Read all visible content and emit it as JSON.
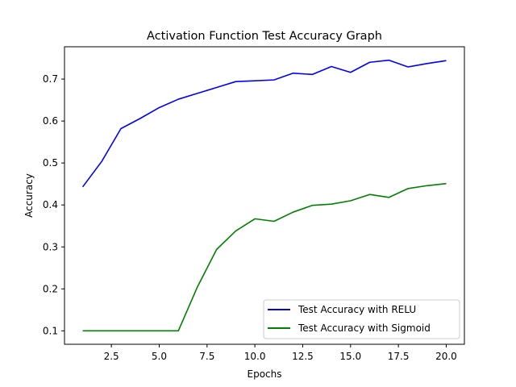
{
  "chart_data": {
    "type": "line",
    "title": "Activation Function Test Accuracy Graph",
    "xlabel": "Epochs",
    "ylabel": "Accuracy",
    "xlim": [
      0.05,
      20.95
    ],
    "ylim": [
      0.068,
      0.777
    ],
    "xticks": [
      2.5,
      5.0,
      7.5,
      10.0,
      12.5,
      15.0,
      17.5,
      20.0
    ],
    "xtick_labels": [
      "2.5",
      "5.0",
      "7.5",
      "10.0",
      "12.5",
      "15.0",
      "17.5",
      "20.0"
    ],
    "yticks": [
      0.1,
      0.2,
      0.3,
      0.4,
      0.5,
      0.6,
      0.7
    ],
    "ytick_labels": [
      "0.1",
      "0.2",
      "0.3",
      "0.4",
      "0.5",
      "0.6",
      "0.7"
    ],
    "grid": false,
    "legend_position": "lower-right",
    "x": [
      1,
      2,
      3,
      4,
      5,
      6,
      7,
      8,
      9,
      10,
      11,
      12,
      13,
      14,
      15,
      16,
      17,
      18,
      19,
      20
    ],
    "series": [
      {
        "name": "Test Accuracy with RELU",
        "color": "#0000ff",
        "values": [
          0.443,
          0.504,
          0.582,
          0.606,
          0.632,
          0.652,
          0.666,
          0.68,
          0.694,
          0.696,
          0.698,
          0.714,
          0.711,
          0.73,
          0.716,
          0.74,
          0.745,
          0.729,
          0.737,
          0.744
        ]
      },
      {
        "name": "Test Accuracy with Sigmoid",
        "color": "#008000",
        "values": [
          0.1,
          0.1,
          0.1,
          0.1,
          0.1,
          0.1,
          0.205,
          0.294,
          0.338,
          0.367,
          0.361,
          0.383,
          0.399,
          0.402,
          0.41,
          0.425,
          0.418,
          0.439,
          0.446,
          0.451
        ]
      }
    ]
  }
}
